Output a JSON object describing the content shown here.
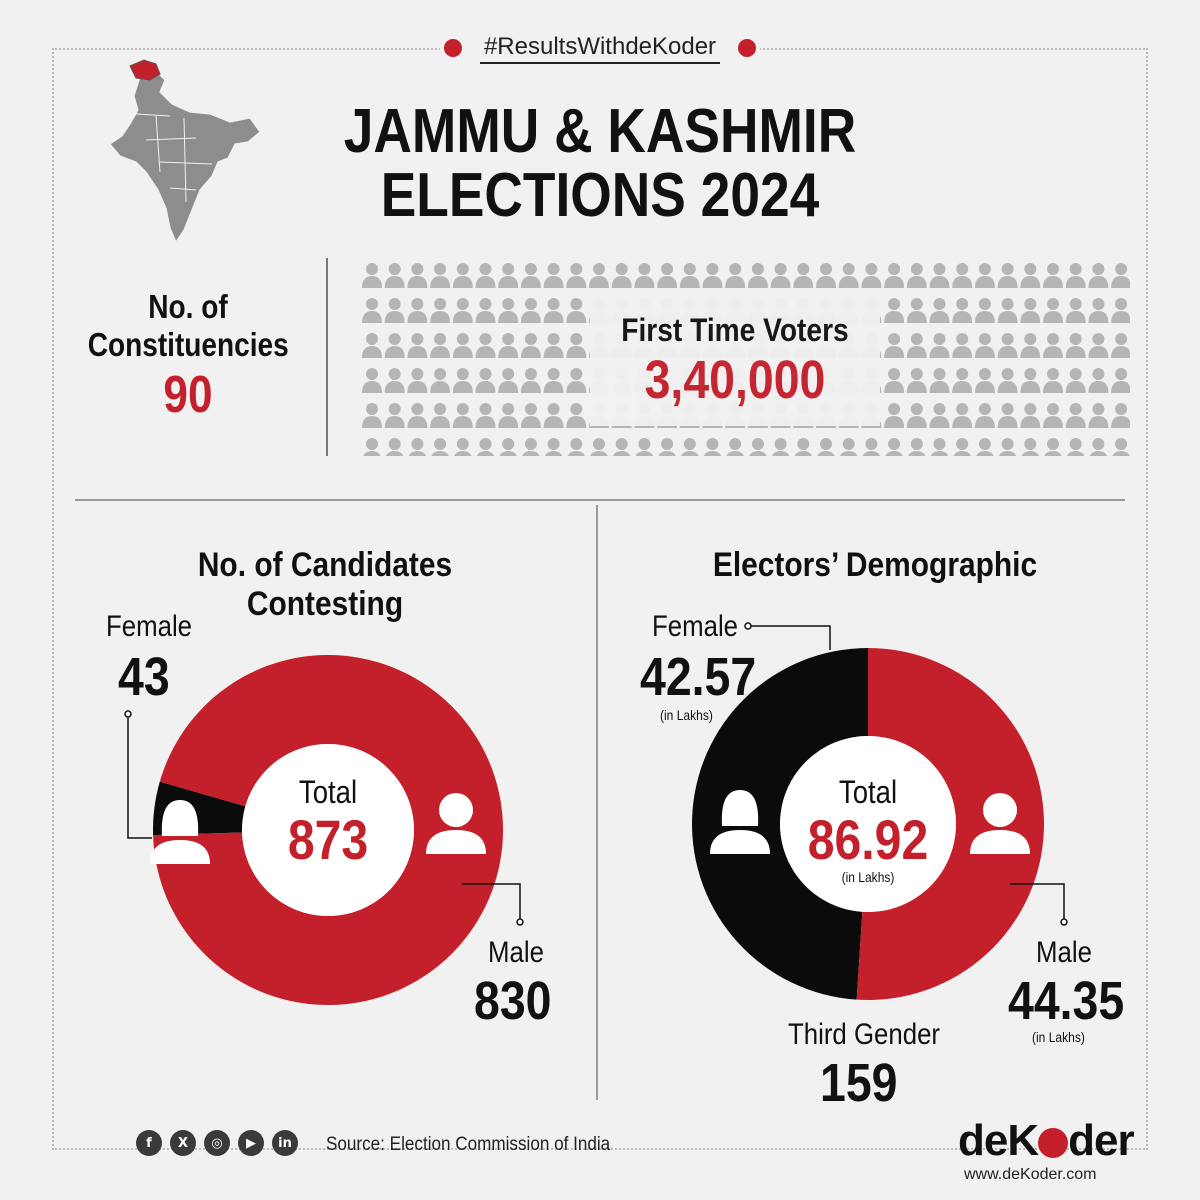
{
  "hashtag": "#ResultsWithdeKoder",
  "title_line1": "JAMMU & KASHMIR",
  "title_line2": "ELECTIONS 2024",
  "constituencies": {
    "label_line1": "No. of",
    "label_line2": "Constituencies",
    "value": "90"
  },
  "first_time_voters": {
    "label": "First Time Voters",
    "value": "3,40,000"
  },
  "colors": {
    "accent": "#c4202b",
    "dark": "#0b0b0b",
    "grey": "#b5b5b5"
  },
  "chart_data": [
    {
      "type": "pie",
      "title": "No. of Candidates Contesting",
      "center_label": "Total",
      "center_value": "873",
      "slices": [
        {
          "name": "Female",
          "value": 43,
          "display": "43",
          "color": "#0b0b0b"
        },
        {
          "name": "Male",
          "value": 830,
          "display": "830",
          "color": "#c4202b"
        }
      ]
    },
    {
      "type": "pie",
      "title": "Electors’ Demographic",
      "center_label": "Total",
      "center_value": "86.92",
      "center_unit": "(in Lakhs)",
      "slices": [
        {
          "name": "Female",
          "value": 42.57,
          "display": "42.57",
          "unit": "(in Lakhs)",
          "color": "#0b0b0b"
        },
        {
          "name": "Male",
          "value": 44.35,
          "display": "44.35",
          "unit": "(in Lakhs)",
          "color": "#c4202b"
        },
        {
          "name": "Third Gender",
          "value": 159,
          "display": "159"
        }
      ]
    }
  ],
  "footer": {
    "social_icons": [
      "facebook-icon",
      "x-icon",
      "instagram-icon",
      "youtube-icon",
      "linkedin-icon"
    ],
    "social_glyphs": [
      "f",
      "X",
      "◎",
      "▶",
      "in"
    ],
    "source": "Source: Election Commission of India",
    "brand_pre": "de",
    "brand_k": "K",
    "brand_post": "der",
    "site": "www.deKoder.com"
  }
}
